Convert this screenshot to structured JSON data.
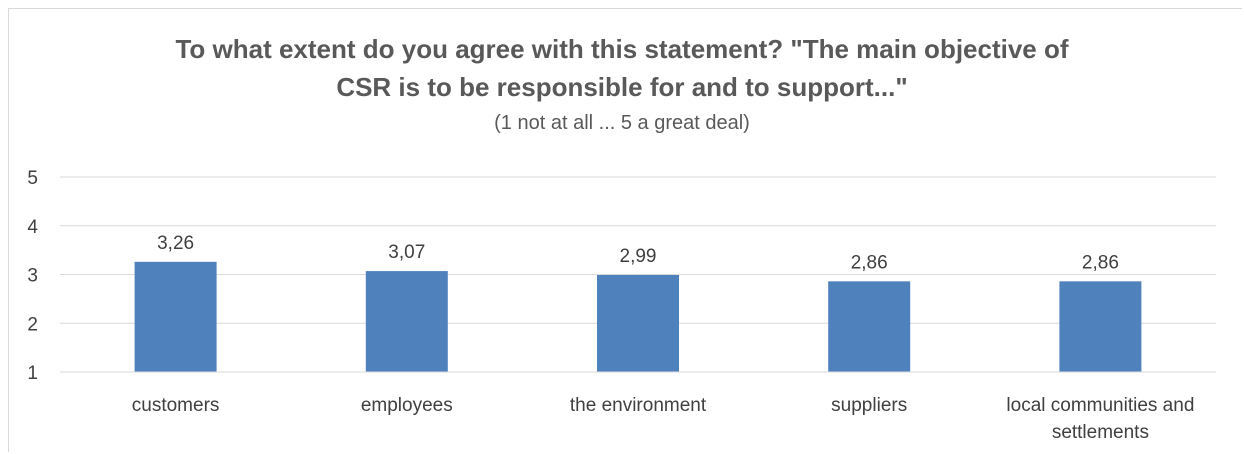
{
  "chart_data": {
    "type": "bar",
    "title_lines": [
      "To what extent do you agree with this statement? \"The main objective of",
      "CSR is to be responsible for and to support...\""
    ],
    "subtitle": "(1 not at all ... 5 a great deal)",
    "categories": [
      "customers",
      "employees",
      "the environment",
      "suppliers",
      "local communities and settlements"
    ],
    "category_lines": [
      [
        "customers"
      ],
      [
        "employees"
      ],
      [
        "the environment"
      ],
      [
        "suppliers"
      ],
      [
        "local communities and",
        "settlements"
      ]
    ],
    "values": [
      3.26,
      3.07,
      2.99,
      2.86,
      2.86
    ],
    "value_labels": [
      "3,26",
      "3,07",
      "2,99",
      "2,86",
      "2,86"
    ],
    "ylim": [
      1,
      5
    ],
    "yticks": [
      "1",
      "2",
      "3",
      "4",
      "5"
    ],
    "grid": true,
    "legend": "none",
    "bar_color": "#4f81bd",
    "grid_color": "#d9d9d9"
  }
}
